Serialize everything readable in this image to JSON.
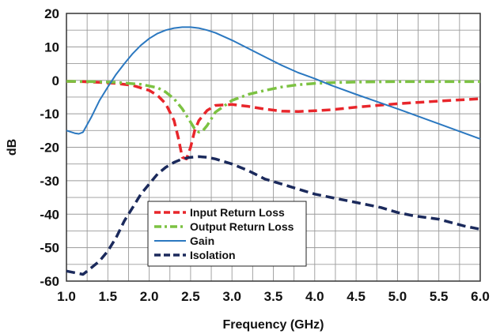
{
  "chart_data": {
    "type": "line",
    "xlabel": "Frequency (GHz)",
    "ylabel": "dB",
    "xlim": [
      1.0,
      6.0
    ],
    "ylim": [
      -60,
      20
    ],
    "x_ticks": [
      "1.0",
      "1.5",
      "2.0",
      "2.5",
      "3.0",
      "3.5",
      "4.0",
      "4.5",
      "5.0",
      "5.5",
      "6.0"
    ],
    "y_ticks": [
      "20",
      "10",
      "0",
      "-10",
      "-20",
      "-30",
      "-40",
      "-50",
      "-60"
    ],
    "grid": true,
    "legend_position": "lower-center",
    "series": [
      {
        "name": "Input Return Loss",
        "color": "#e8262b",
        "style": "dashed",
        "x": [
          1.0,
          1.2,
          1.4,
          1.6,
          1.8,
          2.0,
          2.1,
          2.2,
          2.3,
          2.35,
          2.4,
          2.45,
          2.5,
          2.55,
          2.6,
          2.7,
          2.8,
          3.0,
          3.2,
          3.4,
          3.6,
          3.8,
          4.0,
          4.2,
          4.5,
          5.0,
          5.5,
          6.0
        ],
        "y": [
          -0.3,
          -0.4,
          -0.6,
          -0.9,
          -1.5,
          -3.0,
          -4.5,
          -7.0,
          -12.0,
          -17.0,
          -23.0,
          -23.5,
          -20.0,
          -15.0,
          -12.0,
          -9.0,
          -7.5,
          -7.2,
          -7.8,
          -8.6,
          -9.2,
          -9.3,
          -9.1,
          -8.8,
          -8.0,
          -7.0,
          -6.2,
          -5.5
        ]
      },
      {
        "name": "Output Return Loss",
        "color": "#7cc242",
        "style": "dashdot",
        "x": [
          1.0,
          1.3,
          1.6,
          1.9,
          2.1,
          2.2,
          2.3,
          2.4,
          2.5,
          2.55,
          2.6,
          2.65,
          2.7,
          2.8,
          3.0,
          3.2,
          3.4,
          3.6,
          3.8,
          4.0,
          4.2,
          4.5,
          5.0,
          5.5,
          6.0
        ],
        "y": [
          -0.3,
          -0.4,
          -0.6,
          -1.2,
          -2.2,
          -3.5,
          -5.5,
          -8.5,
          -12.5,
          -14.5,
          -15.5,
          -15.0,
          -13.5,
          -9.5,
          -6.0,
          -4.2,
          -3.0,
          -2.0,
          -1.3,
          -0.9,
          -0.7,
          -0.5,
          -0.4,
          -0.4,
          -0.4
        ]
      },
      {
        "name": "Gain",
        "color": "#2b78c0",
        "style": "solid",
        "x": [
          1.0,
          1.1,
          1.15,
          1.2,
          1.3,
          1.4,
          1.5,
          1.6,
          1.7,
          1.8,
          1.9,
          2.0,
          2.1,
          2.2,
          2.3,
          2.4,
          2.5,
          2.6,
          2.7,
          2.8,
          3.0,
          3.2,
          3.4,
          3.6,
          3.8,
          4.0,
          4.2,
          4.5,
          5.0,
          5.5,
          6.0
        ],
        "y": [
          -15.0,
          -15.8,
          -16.0,
          -15.5,
          -11.0,
          -6.0,
          -2.0,
          1.8,
          5.0,
          8.0,
          10.5,
          12.5,
          14.0,
          15.0,
          15.6,
          15.9,
          15.9,
          15.6,
          15.0,
          14.2,
          12.0,
          9.5,
          7.0,
          4.5,
          2.3,
          0.5,
          -1.5,
          -4.2,
          -8.5,
          -13.0,
          -17.5
        ]
      },
      {
        "name": "Isolation",
        "color": "#1b2a5c",
        "style": "dashed",
        "x": [
          1.0,
          1.2,
          1.3,
          1.4,
          1.5,
          1.6,
          1.7,
          1.8,
          1.9,
          2.0,
          2.1,
          2.2,
          2.3,
          2.4,
          2.5,
          2.6,
          2.7,
          2.8,
          3.0,
          3.2,
          3.4,
          3.6,
          3.8,
          4.0,
          4.2,
          4.5,
          4.8,
          5.0,
          5.2,
          5.5,
          5.8,
          6.0
        ],
        "y": [
          -57.0,
          -58.0,
          -56.0,
          -54.0,
          -51.0,
          -47.0,
          -42.0,
          -38.0,
          -34.0,
          -31.0,
          -28.0,
          -26.0,
          -24.5,
          -23.5,
          -23.0,
          -22.8,
          -23.0,
          -23.5,
          -25.0,
          -27.0,
          -29.5,
          -31.0,
          -32.5,
          -34.0,
          -35.0,
          -36.5,
          -38.0,
          -39.5,
          -40.5,
          -41.5,
          -43.5,
          -44.5
        ]
      }
    ]
  }
}
